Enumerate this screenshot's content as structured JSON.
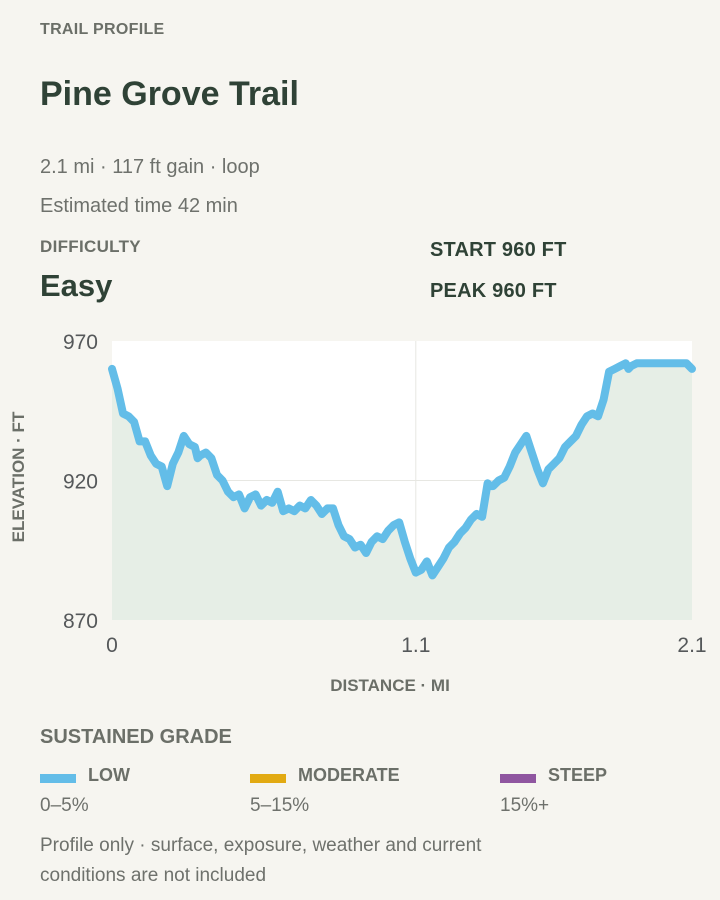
{
  "header": {
    "eyebrow": "TRAIL PROFILE",
    "title": "Pine Grove Trail",
    "meta": "2.1 mi · 117 ft gain · loop",
    "estimate": "Estimated time 42 min"
  },
  "difficulty": {
    "label": "DIFFICULTY",
    "value": "Easy"
  },
  "stats": {
    "start": "START 960 FT",
    "peak": "PEAK 960 FT"
  },
  "chart_data": {
    "type": "area",
    "xlabel": "DISTANCE · MI",
    "ylabel": "ELEVATION · FT",
    "xlim": [
      0,
      2.1
    ],
    "ylim": [
      870,
      970
    ],
    "x_ticks": [
      "0",
      "1.1",
      "2.1"
    ],
    "y_ticks": [
      "970",
      "920",
      "870"
    ],
    "grid": true,
    "line_color": "#63bde8",
    "fill_color": "#e6eee6",
    "series": [
      {
        "x": [
          0,
          0.02,
          0.04,
          0.06,
          0.08,
          0.1,
          0.12,
          0.14,
          0.16,
          0.18,
          0.2,
          0.22,
          0.23,
          0.24,
          0.26,
          0.28,
          0.3,
          0.31,
          0.32,
          0.34,
          0.36,
          0.38,
          0.4,
          0.42,
          0.44,
          0.46,
          0.48,
          0.5,
          0.52,
          0.54,
          0.56,
          0.58,
          0.6,
          0.62,
          0.64,
          0.66,
          0.68,
          0.7,
          0.72,
          0.74,
          0.76,
          0.78,
          0.8,
          0.82,
          0.84,
          0.86,
          0.88,
          0.9,
          0.92,
          0.94,
          0.96,
          0.98,
          1.0,
          1.02,
          1.04,
          1.06,
          1.08,
          1.1,
          1.12,
          1.14,
          1.16,
          1.18,
          1.2,
          1.22,
          1.24,
          1.26,
          1.28,
          1.3,
          1.32,
          1.34,
          1.36,
          1.37,
          1.38,
          1.4,
          1.42,
          1.44,
          1.46,
          1.48,
          1.5,
          1.52,
          1.54,
          1.56,
          1.58,
          1.6,
          1.62,
          1.64,
          1.66,
          1.68,
          1.7,
          1.72,
          1.74,
          1.76,
          1.78,
          1.8,
          1.82,
          1.84,
          1.86,
          1.87,
          1.88,
          1.9,
          1.92,
          1.94,
          1.96,
          1.98,
          2.0,
          2.02,
          2.04,
          2.06,
          2.08,
          2.1
        ],
        "y": [
          960,
          953,
          944,
          943,
          941,
          934,
          934,
          929,
          926,
          925,
          918,
          926,
          928,
          930,
          936,
          933,
          932,
          928,
          929,
          930,
          928,
          922,
          920,
          916,
          914,
          915,
          910,
          914,
          915,
          911,
          913,
          912,
          916,
          909,
          910,
          909,
          911,
          910,
          913,
          911,
          908,
          910,
          910,
          904,
          900,
          899,
          896,
          897,
          894,
          898,
          900,
          899,
          902,
          904,
          905,
          898,
          892,
          887,
          888,
          891,
          886,
          889,
          892,
          896,
          898,
          901,
          903,
          906,
          908,
          907,
          919,
          918,
          918,
          920,
          921,
          925,
          930,
          933,
          936,
          930,
          924,
          919,
          924,
          926,
          928,
          932,
          934,
          936,
          940,
          943,
          944,
          943,
          949,
          959,
          960,
          961,
          962,
          960,
          961,
          962,
          962,
          962,
          962,
          962,
          962,
          962,
          962,
          962,
          962,
          960
        ]
      }
    ]
  },
  "legend": {
    "title": "SUSTAINED GRADE",
    "items": [
      {
        "name": "LOW",
        "range": "0–5%",
        "color": "#63bde8"
      },
      {
        "name": "MODERATE",
        "range": "5–15%",
        "color": "#e2aa12"
      },
      {
        "name": "STEEP",
        "range": "15%+",
        "color": "#8f56a0"
      }
    ]
  },
  "footnote": "Profile only · surface, exposure, weather and current conditions are not included"
}
